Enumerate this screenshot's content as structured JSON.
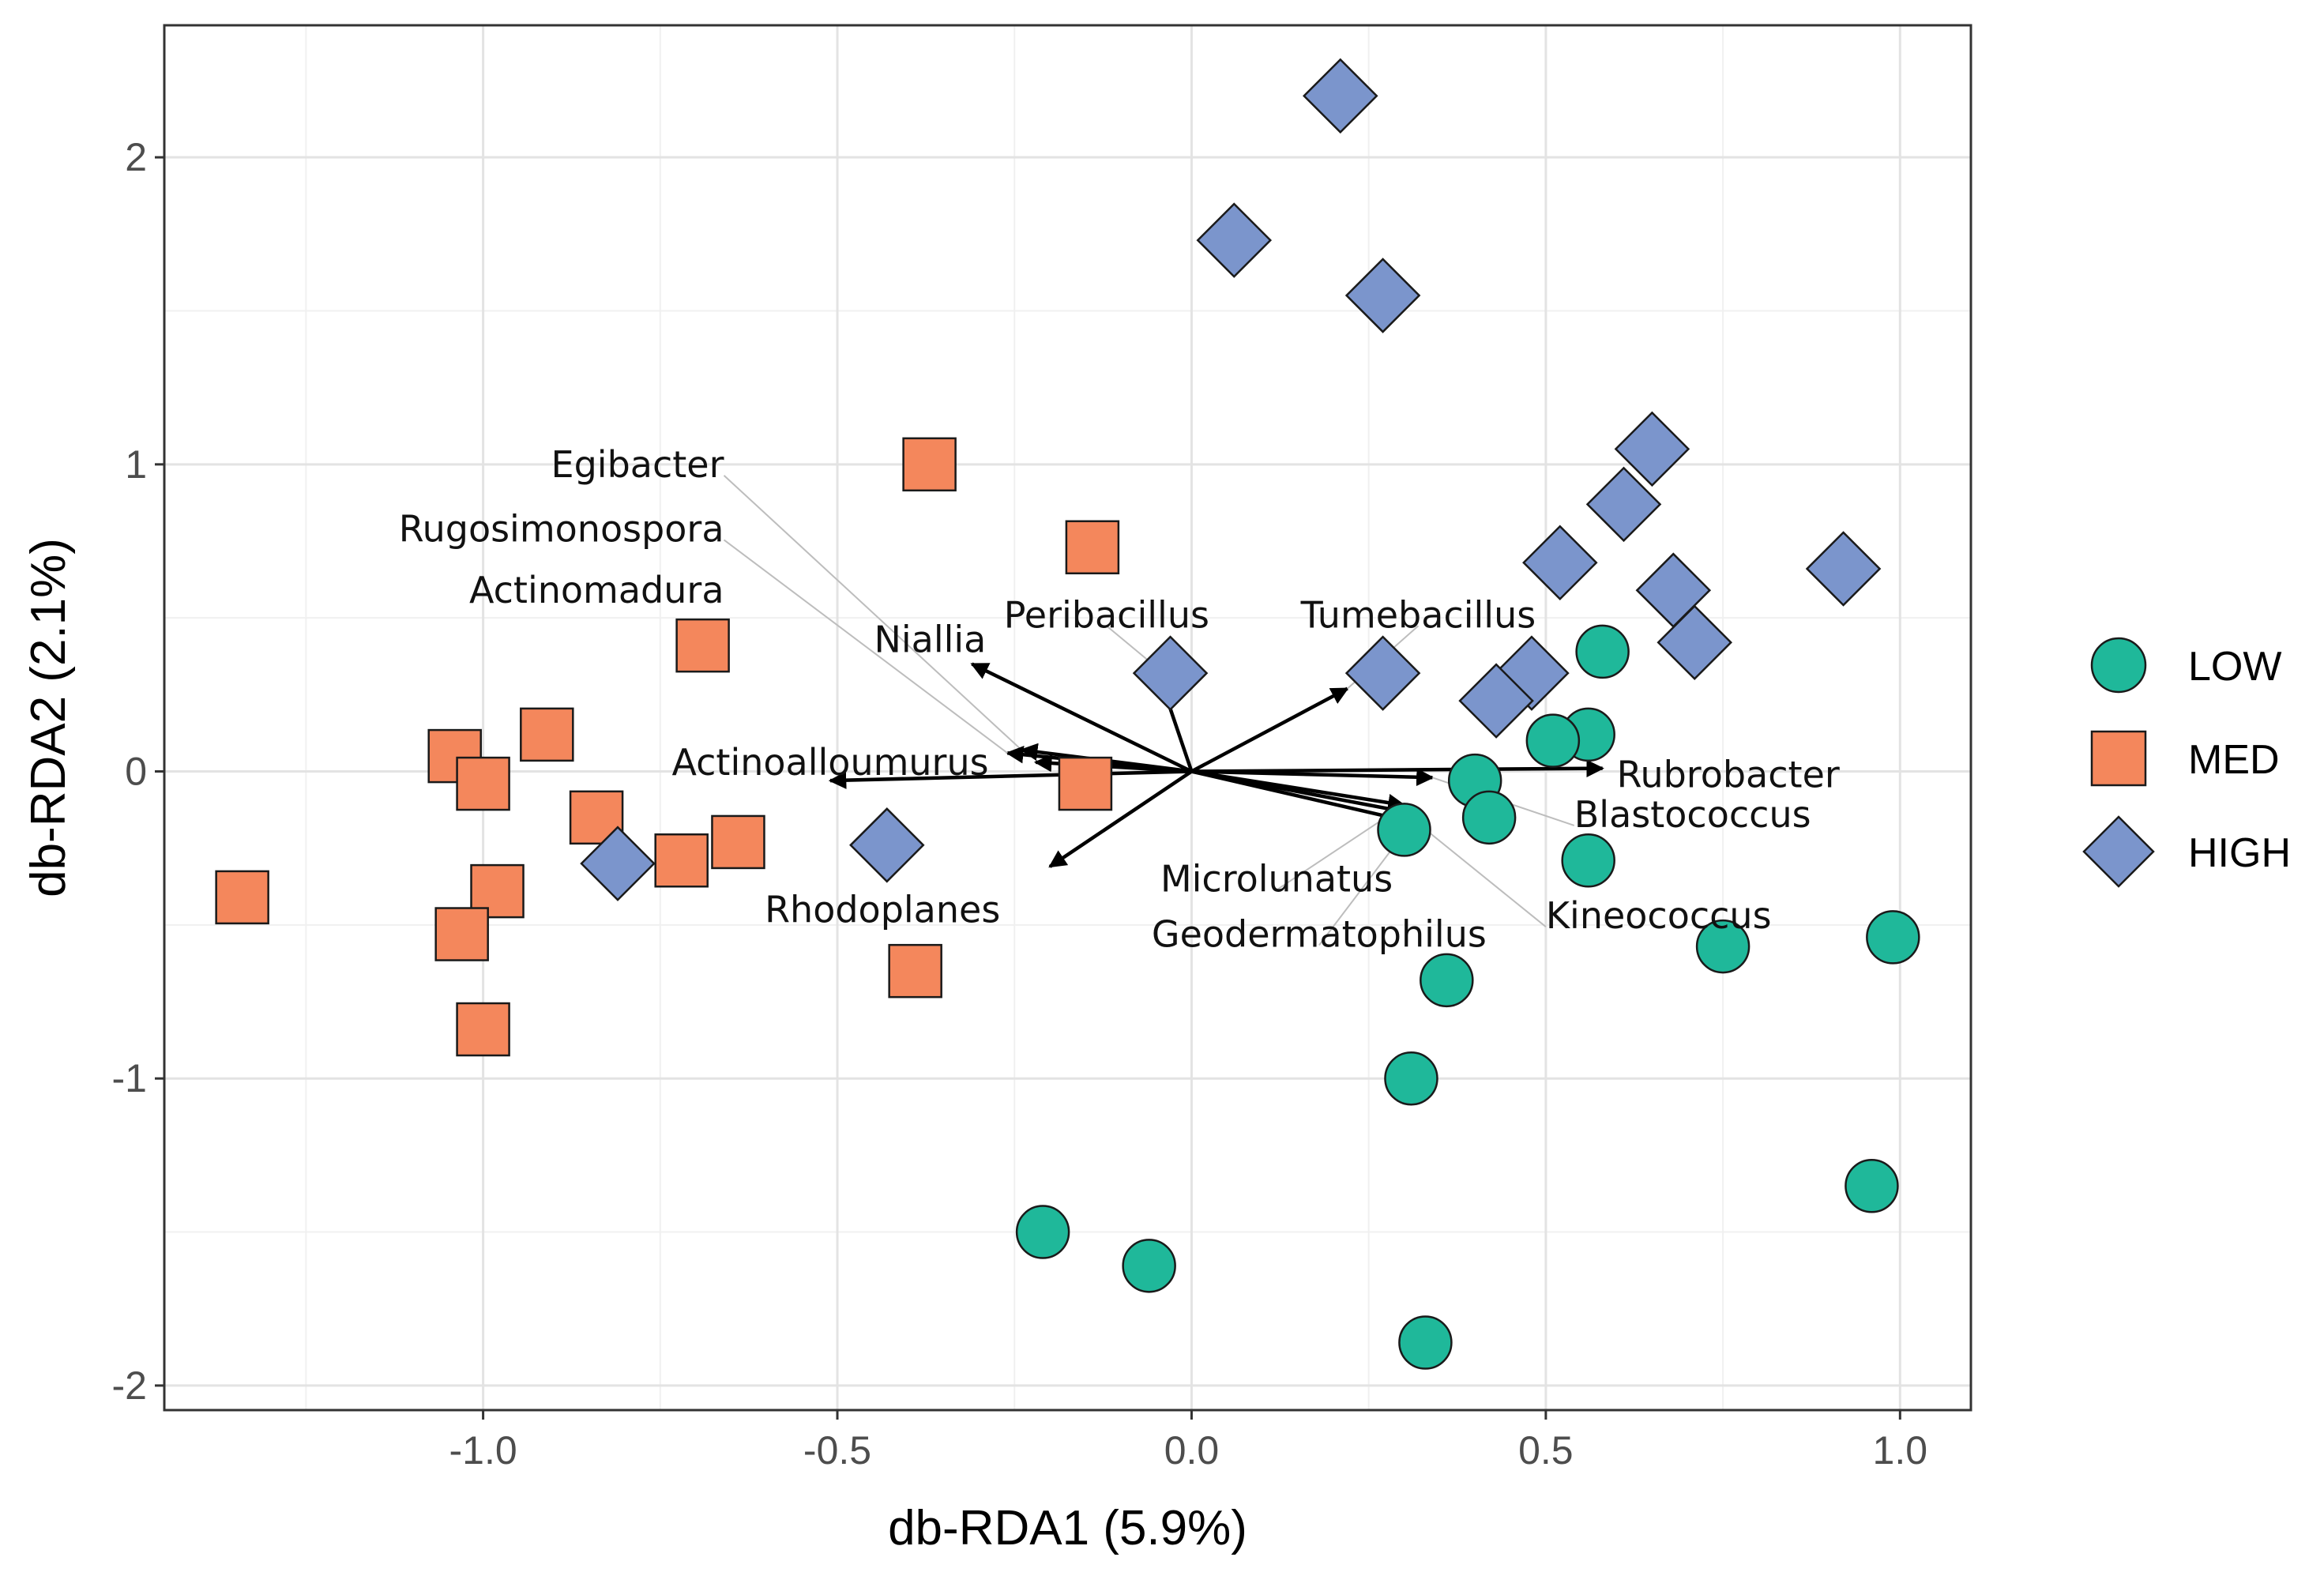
{
  "chart_data": {
    "type": "scatter",
    "xlabel": "db-RDA1 (5.9%)",
    "ylabel": "db-RDA2 (2.1%)",
    "xlim": [
      -1.45,
      1.1
    ],
    "ylim": [
      -2.08,
      2.43
    ],
    "x_ticks": [
      -1.0,
      -0.5,
      0.0,
      0.5,
      1.0
    ],
    "x_tick_labels": [
      "-1.0",
      "-0.5",
      "0.0",
      "0.5",
      "1.0"
    ],
    "y_ticks": [
      -2,
      -1,
      0,
      1,
      2
    ],
    "y_tick_labels": [
      "-2",
      "-1",
      "0",
      "1",
      "2"
    ],
    "grid": true,
    "legend_position": "right",
    "series": [
      {
        "name": "LOW",
        "shape": "circle",
        "color": "#1fb89a",
        "points": [
          [
            0.58,
            0.39
          ],
          [
            0.56,
            0.12
          ],
          [
            0.51,
            0.1
          ],
          [
            0.4,
            -0.03
          ],
          [
            0.42,
            -0.15
          ],
          [
            0.3,
            -0.19
          ],
          [
            0.56,
            -0.29
          ],
          [
            0.75,
            -0.57
          ],
          [
            0.99,
            -0.54
          ],
          [
            0.36,
            -0.68
          ],
          [
            0.31,
            -1.0
          ],
          [
            0.96,
            -1.35
          ],
          [
            -0.21,
            -1.5
          ],
          [
            -0.06,
            -1.61
          ],
          [
            0.33,
            -1.86
          ]
        ]
      },
      {
        "name": "MED",
        "shape": "square",
        "color": "#f4875c",
        "points": [
          [
            -0.37,
            1.0
          ],
          [
            -0.14,
            0.73
          ],
          [
            -0.69,
            0.41
          ],
          [
            -0.91,
            0.12
          ],
          [
            -1.04,
            0.05
          ],
          [
            -1.0,
            -0.04
          ],
          [
            -0.15,
            -0.04
          ],
          [
            -0.84,
            -0.15
          ],
          [
            -0.72,
            -0.29
          ],
          [
            -0.64,
            -0.23
          ],
          [
            -0.98,
            -0.39
          ],
          [
            -1.34,
            -0.41
          ],
          [
            -1.03,
            -0.53
          ],
          [
            -0.39,
            -0.65
          ],
          [
            -1.0,
            -0.84
          ]
        ]
      },
      {
        "name": "HIGH",
        "shape": "diamond",
        "color": "#7b95cc",
        "points": [
          [
            0.21,
            2.2
          ],
          [
            0.06,
            1.73
          ],
          [
            0.27,
            1.55
          ],
          [
            0.65,
            1.05
          ],
          [
            0.61,
            0.87
          ],
          [
            0.52,
            0.68
          ],
          [
            0.68,
            0.59
          ],
          [
            0.92,
            0.66
          ],
          [
            0.71,
            0.42
          ],
          [
            0.48,
            0.32
          ],
          [
            0.43,
            0.23
          ],
          [
            0.27,
            0.32
          ],
          [
            -0.03,
            0.32
          ],
          [
            -0.43,
            -0.24
          ],
          [
            -0.81,
            -0.3
          ]
        ]
      }
    ],
    "arrows": [
      {
        "label": "Egibacter",
        "x": -0.24,
        "y": 0.07,
        "label_x": -0.66,
        "label_y": 1.0,
        "label_anchor": "end",
        "leader": true
      },
      {
        "label": "Rugosimonospora",
        "x": -0.26,
        "y": 0.06,
        "label_x": -0.66,
        "label_y": 0.79,
        "label_anchor": "end",
        "leader": true
      },
      {
        "label": "Actinomadura",
        "x": -0.22,
        "y": 0.03,
        "label_x": -0.66,
        "label_y": 0.59,
        "label_anchor": "end",
        "leader": false
      },
      {
        "label": "Niallia",
        "x": -0.31,
        "y": 0.35,
        "label_x": -0.29,
        "label_y": 0.43,
        "label_anchor": "end",
        "leader": false
      },
      {
        "label": "Peribacillus",
        "x": -0.05,
        "y": 0.34,
        "label_x": -0.12,
        "label_y": 0.51,
        "label_anchor": "middle",
        "leader": true
      },
      {
        "label": "Tumebacillus",
        "x": 0.22,
        "y": 0.27,
        "label_x": 0.32,
        "label_y": 0.51,
        "label_anchor": "middle",
        "leader": true
      },
      {
        "label": "Actinoalloumurus",
        "x": -0.51,
        "y": -0.03,
        "label_x": -0.51,
        "label_y": 0.03,
        "label_anchor": "middle",
        "leader": false
      },
      {
        "label": "Rhodoplanes",
        "x": -0.2,
        "y": -0.31,
        "label_x": -0.27,
        "label_y": -0.45,
        "label_anchor": "end",
        "leader": false
      },
      {
        "label": "Rubrobacter",
        "x": 0.58,
        "y": 0.01,
        "label_x": 0.6,
        "label_y": -0.01,
        "label_anchor": "start",
        "leader": false
      },
      {
        "label": "Blastococcus",
        "x": 0.34,
        "y": -0.02,
        "label_x": 0.54,
        "label_y": -0.14,
        "label_anchor": "start",
        "leader": true
      },
      {
        "label": "Microlunatus",
        "x": 0.3,
        "y": -0.11,
        "label_x": 0.12,
        "label_y": -0.35,
        "label_anchor": "middle",
        "leader": true
      },
      {
        "label": "Geodermatophilus",
        "x": 0.32,
        "y": -0.14,
        "label_x": 0.18,
        "label_y": -0.53,
        "label_anchor": "middle",
        "leader": true
      },
      {
        "label": "Kineococcus",
        "x": 0.32,
        "y": -0.17,
        "label_x": 0.5,
        "label_y": -0.47,
        "label_anchor": "start",
        "leader": true
      }
    ]
  }
}
